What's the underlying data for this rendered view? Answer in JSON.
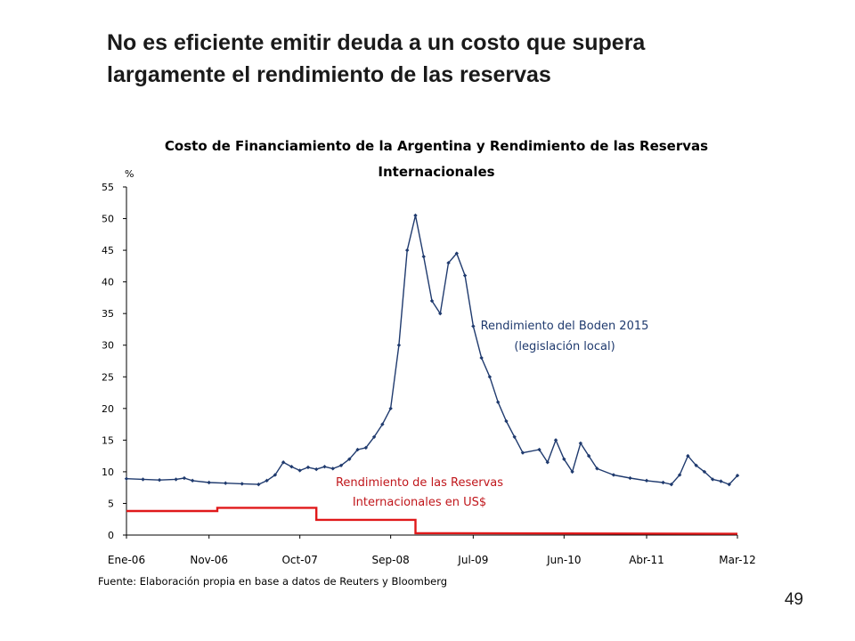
{
  "slide": {
    "title_line1": "No es eficiente emitir deuda a un costo que supera",
    "title_line2": "largamente el rendimiento de las reservas",
    "page_number": "49"
  },
  "chart_data": {
    "type": "line",
    "title": "Costo de Financiamiento de la Argentina y Rendimiento de las Reservas Internacionales",
    "title_line1": "Costo de Financiamiento de la Argentina y Rendimiento de las Reservas",
    "title_line2": "Internacionales",
    "ylabel": "%",
    "ylim": [
      0,
      55
    ],
    "yticks": [
      0,
      5,
      10,
      15,
      20,
      25,
      30,
      35,
      40,
      45,
      50,
      55
    ],
    "x_tick_labels": [
      "Ene-06",
      "Nov-06",
      "Oct-07",
      "Sep-08",
      "Jul-09",
      "Jun-10",
      "Abr-11",
      "Mar-12"
    ],
    "x_ticks": [
      "2006-01",
      "2006-11",
      "2007-10",
      "2008-09",
      "2009-07",
      "2010-06",
      "2011-04",
      "2012-03"
    ],
    "xlim": [
      "2006-01",
      "2012-03"
    ],
    "source": "Fuente: Elaboración propia en base a datos de Reuters y Bloomberg",
    "grid": false,
    "series": [
      {
        "name_line1": "Rendimiento del Boden 2015",
        "name_line2": "(legislación local)",
        "color": "#1f3a6e",
        "marker": "diamond",
        "points": [
          [
            "2006-01",
            8.9
          ],
          [
            "2006-03",
            8.8
          ],
          [
            "2006-05",
            8.7
          ],
          [
            "2006-07",
            8.8
          ],
          [
            "2006-08",
            9.0
          ],
          [
            "2006-09",
            8.6
          ],
          [
            "2006-11",
            8.3
          ],
          [
            "2007-01",
            8.2
          ],
          [
            "2007-03",
            8.1
          ],
          [
            "2007-05",
            8.0
          ],
          [
            "2007-06",
            8.6
          ],
          [
            "2007-07",
            9.5
          ],
          [
            "2007-08",
            11.5
          ],
          [
            "2007-09",
            10.8
          ],
          [
            "2007-10",
            10.2
          ],
          [
            "2007-11",
            10.7
          ],
          [
            "2007-12",
            10.4
          ],
          [
            "2008-01",
            10.8
          ],
          [
            "2008-02",
            10.5
          ],
          [
            "2008-03",
            11.0
          ],
          [
            "2008-04",
            12.0
          ],
          [
            "2008-05",
            13.5
          ],
          [
            "2008-06",
            13.8
          ],
          [
            "2008-07",
            15.5
          ],
          [
            "2008-08",
            17.5
          ],
          [
            "2008-09",
            20.0
          ],
          [
            "2008-10",
            30.0
          ],
          [
            "2008-11",
            45.0
          ],
          [
            "2008-12",
            50.5
          ],
          [
            "2009-01",
            44.0
          ],
          [
            "2009-02",
            37.0
          ],
          [
            "2009-03",
            35.0
          ],
          [
            "2009-04",
            43.0
          ],
          [
            "2009-05",
            44.5
          ],
          [
            "2009-06",
            41.0
          ],
          [
            "2009-07",
            33.0
          ],
          [
            "2009-08",
            28.0
          ],
          [
            "2009-09",
            25.0
          ],
          [
            "2009-10",
            21.0
          ],
          [
            "2009-11",
            18.0
          ],
          [
            "2009-12",
            15.5
          ],
          [
            "2010-01",
            13.0
          ],
          [
            "2010-03",
            13.5
          ],
          [
            "2010-04",
            11.5
          ],
          [
            "2010-05",
            15.0
          ],
          [
            "2010-06",
            12.0
          ],
          [
            "2010-07",
            10.0
          ],
          [
            "2010-08",
            14.5
          ],
          [
            "2010-09",
            12.5
          ],
          [
            "2010-10",
            10.5
          ],
          [
            "2010-12",
            9.5
          ],
          [
            "2011-02",
            9.0
          ],
          [
            "2011-04",
            8.6
          ],
          [
            "2011-06",
            8.3
          ],
          [
            "2011-07",
            8.0
          ],
          [
            "2011-08",
            9.5
          ],
          [
            "2011-09",
            12.5
          ],
          [
            "2011-10",
            11.0
          ],
          [
            "2011-11",
            10.0
          ],
          [
            "2011-12",
            8.8
          ],
          [
            "2012-01",
            8.5
          ],
          [
            "2012-02",
            8.0
          ],
          [
            "2012-03",
            9.4
          ]
        ]
      },
      {
        "name_line1": "Rendimiento de las Reservas",
        "name_line2": "Internacionales en US$",
        "color": "#e0191a",
        "step": true,
        "points": [
          [
            "2006-01",
            3.8
          ],
          [
            "2006-12",
            3.8
          ],
          [
            "2006-12",
            4.3
          ],
          [
            "2007-12",
            4.3
          ],
          [
            "2007-12",
            2.4
          ],
          [
            "2008-12",
            2.4
          ],
          [
            "2008-12",
            0.3
          ],
          [
            "2012-03",
            0.2
          ]
        ]
      }
    ]
  }
}
